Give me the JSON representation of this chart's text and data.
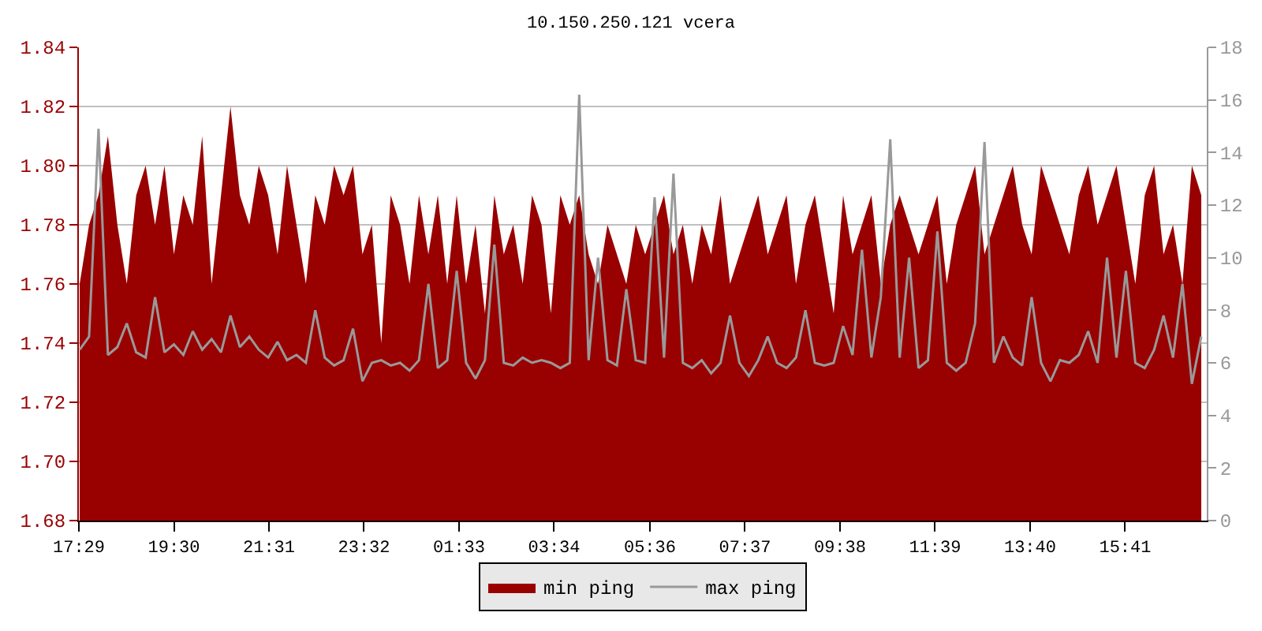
{
  "chart_data": {
    "type": "area",
    "title": "10.150.250.121 vcera",
    "x": [
      "--01-01T17:30",
      "--01-01T17:42",
      "--01-01T17:54",
      "--01-01T18:06",
      "--01-01T18:18",
      "--01-01T18:30",
      "--01-01T18:42",
      "--01-01T18:54",
      "--01-01T19:06",
      "--01-01T19:18",
      "--01-01T19:30",
      "--01-01T19:42",
      "--01-01T19:54",
      "--01-01T20:06",
      "--01-01T20:18",
      "--01-01T20:30",
      "--01-01T20:42",
      "--01-01T20:54",
      "--01-01T21:06",
      "--01-01T21:18",
      "--01-01T21:30",
      "--01-01T21:42",
      "--01-01T21:54",
      "--01-01T22:06",
      "--01-01T22:18",
      "--01-01T22:30",
      "--01-01T22:42",
      "--01-01T22:54",
      "--01-01T23:06",
      "--01-01T23:18",
      "--01-01T23:30",
      "--01-01T23:42",
      "--01-01T23:54",
      "--01-02T00:06",
      "--01-02T00:18",
      "--01-02T00:30",
      "--01-02T00:42",
      "--01-02T00:54",
      "--01-02T01:06",
      "--01-02T01:18",
      "--01-02T01:30",
      "--01-02T01:42",
      "--01-02T01:54",
      "--01-02T02:06",
      "--01-02T02:18",
      "--01-02T02:30",
      "--01-02T02:42",
      "--01-02T02:54",
      "--01-02T03:06",
      "--01-02T03:18",
      "--01-02T03:30",
      "--01-02T03:42",
      "--01-02T03:54",
      "--01-02T04:06",
      "--01-02T04:18",
      "--01-02T04:30",
      "--01-02T04:42",
      "--01-02T04:54",
      "--01-02T05:06",
      "--01-02T05:18",
      "--01-02T05:30",
      "--01-02T05:42",
      "--01-02T05:54",
      "--01-02T06:06",
      "--01-02T06:18",
      "--01-02T06:30",
      "--01-02T06:42",
      "--01-02T06:54",
      "--01-02T07:06",
      "--01-02T07:18",
      "--01-02T07:30",
      "--01-02T07:42",
      "--01-02T07:54",
      "--01-02T08:06",
      "--01-02T08:18",
      "--01-02T08:30",
      "--01-02T08:42",
      "--01-02T08:54",
      "--01-02T09:06",
      "--01-02T09:18",
      "--01-02T09:30",
      "--01-02T09:42",
      "--01-02T09:54",
      "--01-02T10:06",
      "--01-02T10:18",
      "--01-02T10:30",
      "--01-02T10:42",
      "--01-02T10:54",
      "--01-02T11:06",
      "--01-02T11:18",
      "--01-02T11:30",
      "--01-02T11:42",
      "--01-02T11:54",
      "--01-02T12:06",
      "--01-02T12:18",
      "--01-02T12:30",
      "--01-02T12:42",
      "--01-02T12:54",
      "--01-02T13:06",
      "--01-02T13:18",
      "--01-02T13:30",
      "--01-02T13:42",
      "--01-02T13:54",
      "--01-02T14:06",
      "--01-02T14:18",
      "--01-02T14:30",
      "--01-02T14:42",
      "--01-02T14:54",
      "--01-02T15:06",
      "--01-02T15:18",
      "--01-02T15:30",
      "--01-02T15:42",
      "--01-02T15:54",
      "--01-02T16:06",
      "--01-02T16:18",
      "--01-02T16:30",
      "--01-02T16:42",
      "--01-02T16:54",
      "--01-02T17:06",
      "--01-02T17:18"
    ],
    "series": [
      {
        "name": "min ping",
        "color": "#990000",
        "values": [
          1.76,
          1.78,
          1.79,
          1.81,
          1.78,
          1.76,
          1.79,
          1.8,
          1.78,
          1.8,
          1.77,
          1.79,
          1.78,
          1.81,
          1.76,
          1.79,
          1.82,
          1.79,
          1.78,
          1.8,
          1.79,
          1.77,
          1.8,
          1.78,
          1.76,
          1.79,
          1.78,
          1.8,
          1.79,
          1.8,
          1.77,
          1.78,
          1.74,
          1.79,
          1.78,
          1.76,
          1.79,
          1.77,
          1.79,
          1.76,
          1.79,
          1.76,
          1.78,
          1.75,
          1.79,
          1.77,
          1.78,
          1.76,
          1.79,
          1.78,
          1.75,
          1.79,
          1.78,
          1.79,
          1.77,
          1.76,
          1.78,
          1.77,
          1.76,
          1.78,
          1.77,
          1.78,
          1.79,
          1.77,
          1.78,
          1.76,
          1.78,
          1.77,
          1.79,
          1.76,
          1.77,
          1.78,
          1.79,
          1.77,
          1.78,
          1.79,
          1.76,
          1.78,
          1.79,
          1.77,
          1.75,
          1.79,
          1.77,
          1.78,
          1.79,
          1.76,
          1.78,
          1.79,
          1.78,
          1.77,
          1.78,
          1.79,
          1.76,
          1.78,
          1.79,
          1.8,
          1.77,
          1.78,
          1.79,
          1.8,
          1.78,
          1.77,
          1.8,
          1.79,
          1.78,
          1.77,
          1.79,
          1.8,
          1.78,
          1.79,
          1.8,
          1.78,
          1.76,
          1.79,
          1.8,
          1.77,
          1.78,
          1.76,
          1.8,
          1.79
        ]
      },
      {
        "name": "max ping",
        "type": "line",
        "axis": "y2",
        "color": "#999999",
        "values": [
          6.5,
          7.0,
          14.9,
          6.3,
          6.6,
          7.5,
          6.4,
          6.2,
          8.5,
          6.4,
          6.7,
          6.3,
          7.2,
          6.5,
          6.9,
          6.4,
          7.8,
          6.6,
          7.0,
          6.5,
          6.2,
          6.8,
          6.1,
          6.3,
          6.0,
          8.0,
          6.2,
          5.9,
          6.1,
          7.3,
          5.3,
          6.0,
          6.1,
          5.9,
          6.0,
          5.7,
          6.1,
          9.0,
          5.8,
          6.1,
          9.5,
          6.0,
          5.4,
          6.1,
          10.5,
          6.0,
          5.9,
          6.2,
          6.0,
          6.1,
          6.0,
          5.8,
          6.0,
          16.2,
          6.1,
          10.0,
          6.1,
          5.9,
          8.8,
          6.1,
          6.0,
          12.3,
          6.2,
          13.2,
          6.0,
          5.8,
          6.1,
          5.6,
          6.0,
          7.8,
          6.0,
          5.5,
          6.1,
          7.0,
          6.0,
          5.8,
          6.2,
          8.0,
          6.0,
          5.9,
          6.0,
          7.4,
          6.3,
          10.3,
          6.2,
          8.5,
          14.5,
          6.2,
          10.0,
          5.8,
          6.1,
          11.0,
          6.0,
          5.7,
          6.0,
          7.5,
          14.4,
          6.0,
          7.0,
          6.2,
          5.9,
          8.5,
          6.0,
          5.3,
          6.1,
          6.0,
          6.3,
          7.2,
          6.0,
          10.0,
          6.2,
          9.5,
          6.0,
          5.8,
          6.5,
          7.8,
          6.2,
          9.0,
          5.2,
          7.0
        ]
      }
    ],
    "xlim": [
      "--01-01T17:29",
      "--01-02T17:25"
    ],
    "xticks": [
      {
        "value": "--01-01T17:29",
        "label": "17:29"
      },
      {
        "value": "--01-01T19:30",
        "label": "19:30"
      },
      {
        "value": "--01-01T21:31",
        "label": "21:31"
      },
      {
        "value": "--01-01T23:32",
        "label": "23:32"
      },
      {
        "value": "--01-02T01:33",
        "label": "01:33"
      },
      {
        "value": "--01-02T03:34",
        "label": "03:34"
      },
      {
        "value": "--01-02T05:36",
        "label": "05:36"
      },
      {
        "value": "--01-02T07:37",
        "label": "07:37"
      },
      {
        "value": "--01-02T09:38",
        "label": "09:38"
      },
      {
        "value": "--01-02T11:39",
        "label": "11:39"
      },
      {
        "value": "--01-02T13:40",
        "label": "13:40"
      },
      {
        "value": "--01-02T15:41",
        "label": "15:41"
      }
    ],
    "ylim": [
      1.68,
      1.84
    ],
    "yticks": [
      {
        "value": 1.68,
        "label": "1.68"
      },
      {
        "value": 1.7,
        "label": "1.70"
      },
      {
        "value": 1.72,
        "label": "1.72"
      },
      {
        "value": 1.74,
        "label": "1.74"
      },
      {
        "value": 1.76,
        "label": "1.76"
      },
      {
        "value": 1.78,
        "label": "1.78"
      },
      {
        "value": 1.8,
        "label": "1.80"
      },
      {
        "value": 1.82,
        "label": "1.82"
      },
      {
        "value": 1.84,
        "label": "1.84"
      }
    ],
    "y2lim": [
      0,
      18
    ],
    "y2ticks": [
      0,
      2,
      4,
      6,
      8,
      10,
      12,
      14,
      16,
      18
    ],
    "grid": "y",
    "legend": "bottom"
  }
}
